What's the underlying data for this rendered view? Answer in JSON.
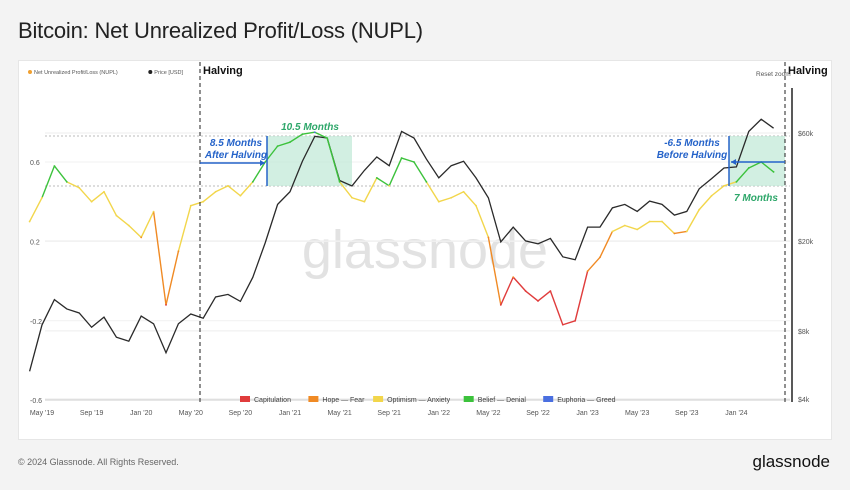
{
  "title": "Bitcoin: Net Unrealized Profit/Loss (NUPL)",
  "footer": "© 2024 Glassnode. All Rights Reserved.",
  "brand": "glassnode",
  "watermark": "glassnode",
  "reset_zoom": "Reset zoom",
  "chart_data": {
    "type": "line",
    "title": "Bitcoin: Net Unrealized Profit/Loss (NUPL)",
    "legend_top": [
      {
        "name": "Net Unrealized Profit/Loss (NUPL)",
        "color": "#f0a030"
      },
      {
        "name": "Price [USD]",
        "color": "#222222"
      }
    ],
    "legend_bottom": [
      {
        "name": "Capitulation",
        "color": "#e03c3c"
      },
      {
        "name": "Hope — Fear",
        "color": "#f08a24"
      },
      {
        "name": "Optimism — Anxiety",
        "color": "#f2d64b"
      },
      {
        "name": "Belief — Denial",
        "color": "#3cc23c"
      },
      {
        "name": "Euphoria — Greed",
        "color": "#4a6fe0"
      }
    ],
    "zones": [
      -1,
      0,
      0.25,
      0.5,
      0.75,
      1
    ],
    "x_ticks": [
      "May '19",
      "Sep '19",
      "Jan '20",
      "May '20",
      "Sep '20",
      "Jan '21",
      "May '21",
      "Sep '21",
      "Jan '22",
      "May '22",
      "Sep '22",
      "Jan '23",
      "May '23",
      "Sep '23",
      "Jan '24"
    ],
    "y_left_ticks": [
      {
        "v": 0.6,
        "label": "0.6"
      },
      {
        "v": 0.2,
        "label": "0.2"
      },
      {
        "v": -0.2,
        "label": "-0.2"
      },
      {
        "v": -0.6,
        "label": "-0.6"
      }
    ],
    "y_right_ticks": [
      {
        "v": 60000,
        "label": "$60k"
      },
      {
        "v": 20000,
        "label": "$20k"
      },
      {
        "v": 8000,
        "label": "$8k"
      },
      {
        "v": 4000,
        "label": "$4k"
      }
    ],
    "y_left_range": [
      -0.6,
      0.6
    ],
    "y_right_scale": "log",
    "dates": [
      "2019-04",
      "2019-05",
      "2019-06",
      "2019-07",
      "2019-08",
      "2019-09",
      "2019-10",
      "2019-11",
      "2019-12",
      "2020-01",
      "2020-02",
      "2020-03",
      "2020-04",
      "2020-05",
      "2020-06",
      "2020-07",
      "2020-08",
      "2020-09",
      "2020-10",
      "2020-11",
      "2020-12",
      "2021-01",
      "2021-02",
      "2021-03",
      "2021-04",
      "2021-05",
      "2021-06",
      "2021-07",
      "2021-08",
      "2021-09",
      "2021-10",
      "2021-11",
      "2021-12",
      "2022-01",
      "2022-02",
      "2022-03",
      "2022-04",
      "2022-05",
      "2022-06",
      "2022-07",
      "2022-08",
      "2022-09",
      "2022-10",
      "2022-11",
      "2022-12",
      "2023-01",
      "2023-02",
      "2023-03",
      "2023-04",
      "2023-05",
      "2023-06",
      "2023-07",
      "2023-08",
      "2023-09",
      "2023-10",
      "2023-11",
      "2023-12",
      "2024-01",
      "2024-02",
      "2024-03",
      "2024-04"
    ],
    "series": [
      {
        "name": "Net Unrealized Profit/Loss (NUPL)",
        "axis": "left",
        "values": [
          0.3,
          0.42,
          0.58,
          0.5,
          0.47,
          0.4,
          0.45,
          0.33,
          0.28,
          0.22,
          0.35,
          -0.12,
          0.15,
          0.38,
          0.4,
          0.45,
          0.48,
          0.43,
          0.5,
          0.6,
          0.68,
          0.7,
          0.74,
          0.75,
          0.72,
          0.5,
          0.42,
          0.4,
          0.52,
          0.48,
          0.62,
          0.6,
          0.5,
          0.4,
          0.42,
          0.45,
          0.38,
          0.22,
          -0.12,
          0.02,
          -0.05,
          -0.1,
          -0.05,
          -0.22,
          -0.2,
          0.05,
          0.12,
          0.25,
          0.28,
          0.26,
          0.3,
          0.3,
          0.24,
          0.25,
          0.36,
          0.43,
          0.48,
          0.5,
          0.57,
          0.6,
          0.55
        ]
      },
      {
        "name": "Price [USD]",
        "axis": "right",
        "values": [
          5300,
          8500,
          11000,
          10000,
          9600,
          8300,
          9200,
          7500,
          7200,
          9300,
          8600,
          6400,
          8600,
          9500,
          9100,
          11300,
          11600,
          10800,
          13800,
          19600,
          29000,
          33000,
          45000,
          58000,
          57000,
          37000,
          35000,
          41000,
          47000,
          43000,
          61000,
          57000,
          46000,
          38000,
          43000,
          45000,
          38000,
          31000,
          19800,
          23000,
          20000,
          19400,
          20500,
          17000,
          16500,
          23000,
          23000,
          28000,
          29000,
          27000,
          30000,
          29000,
          26000,
          27000,
          34000,
          37700,
          42000,
          42500,
          61000,
          69000,
          63000
        ]
      }
    ],
    "annotations": {
      "halving": "Halving",
      "left_months": "10.5 Months",
      "left_after": [
        "8.5 Months",
        "After Halving"
      ],
      "right_before": [
        "-6.5 Months",
        "Before Halving"
      ],
      "right_months": "7 Months"
    }
  }
}
